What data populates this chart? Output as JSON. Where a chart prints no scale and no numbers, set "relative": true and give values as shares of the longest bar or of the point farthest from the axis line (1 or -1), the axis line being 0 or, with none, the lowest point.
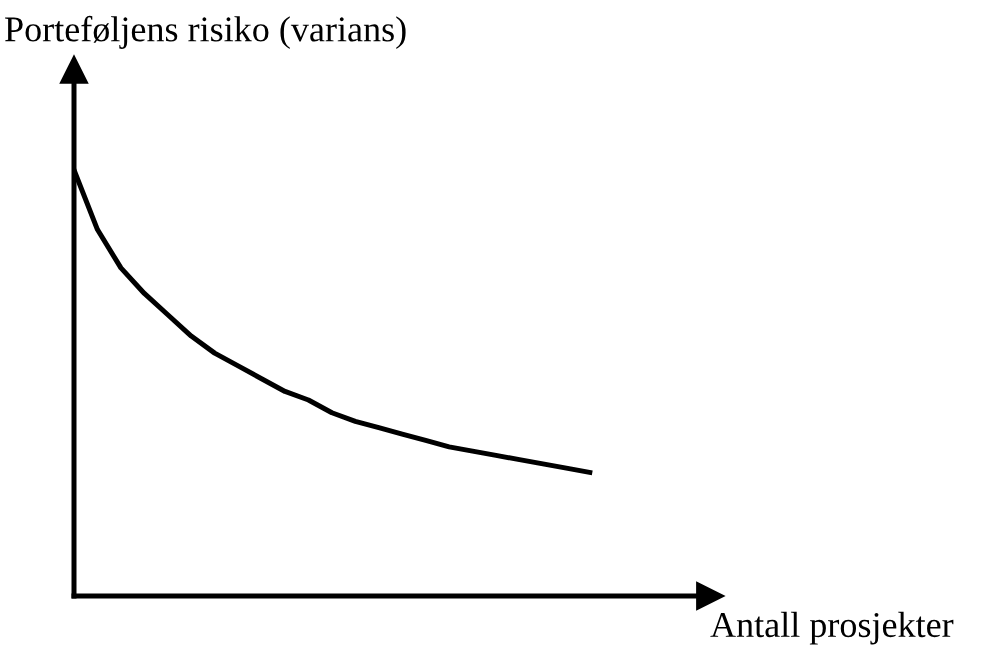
{
  "chart_data": {
    "type": "line",
    "relative": true,
    "xlabel": "Antall prosjekter",
    "ylabel": "Porteføljens risiko (varians)",
    "categories": [
      null,
      null,
      null,
      null,
      null,
      null,
      null,
      null,
      null,
      null,
      null,
      null,
      null,
      null,
      null,
      null,
      null,
      null,
      null,
      null,
      null,
      null,
      null
    ],
    "series": [
      {
        "color": "#000000",
        "values": [
          1.0,
          0.86,
          0.77,
          0.71,
          0.66,
          0.61,
          0.57,
          0.54,
          0.51,
          0.48,
          0.46,
          0.43,
          0.41,
          0.395,
          0.38,
          0.365,
          0.35,
          0.34,
          0.33,
          0.32,
          0.31,
          0.3,
          0.29
        ]
      }
    ],
    "grid": false,
    "legend": false,
    "marker": "none",
    "line_style": "solid"
  }
}
